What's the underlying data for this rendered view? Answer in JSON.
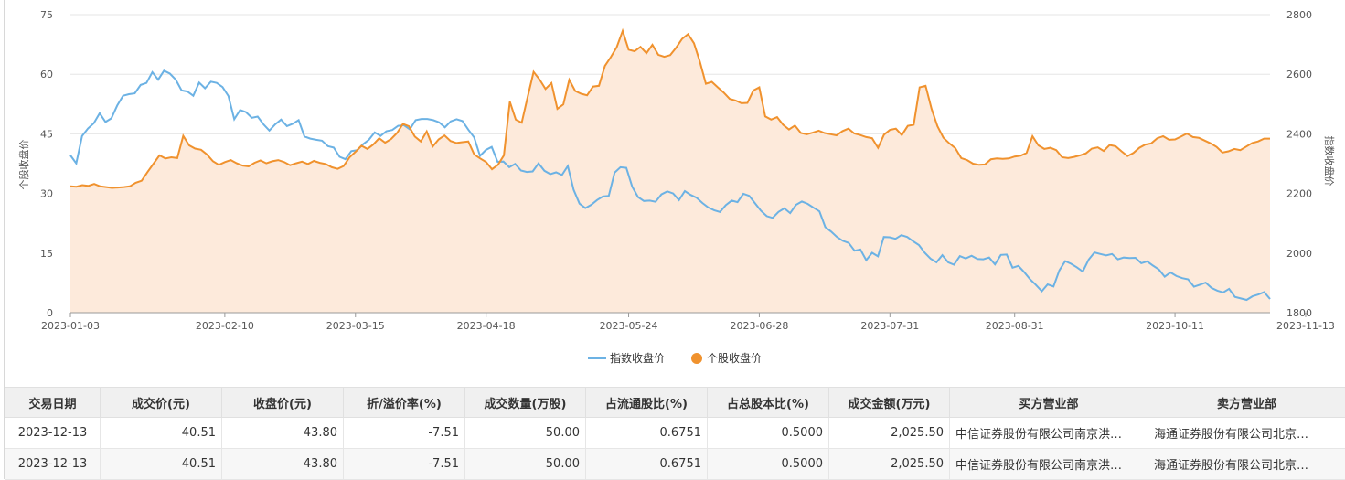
{
  "chart_data": {
    "type": "line",
    "x_ticks": [
      "2023-01-03",
      "2023-02-10",
      "2023-03-15",
      "2023-04-18",
      "2023-05-24",
      "2023-06-28",
      "2023-07-31",
      "2023-08-31",
      "2023-10-11",
      "2023-11-13"
    ],
    "y_left": {
      "label": "个股收盘价",
      "ticks": [
        "0",
        "15",
        "30",
        "45",
        "60",
        "75"
      ],
      "range": [
        0,
        75
      ]
    },
    "y_right": {
      "label": "指数收盘价",
      "ticks": [
        "1800",
        "2000",
        "2200",
        "2400",
        "2600",
        "2800"
      ],
      "range": [
        1800,
        2800
      ]
    },
    "legend": [
      {
        "name": "指数收盘价",
        "color": "#6cb2e4"
      },
      {
        "name": "个股收盘价",
        "color": "#f0922e"
      }
    ],
    "legend_position": "bottom",
    "grid": true,
    "colors": {
      "index_line": "#6cb2e4",
      "stock_line": "#f0922e",
      "stock_area": "#fdeadb"
    },
    "series": [
      {
        "name": "指数收盘价",
        "axis": "right",
        "values": [
          2328,
          2301,
          2393,
          2418,
          2436,
          2469,
          2440,
          2452,
          2495,
          2528,
          2533,
          2536,
          2564,
          2571,
          2607,
          2582,
          2612,
          2602,
          2582,
          2546,
          2542,
          2528,
          2572,
          2553,
          2575,
          2571,
          2557,
          2527,
          2449,
          2480,
          2473,
          2454,
          2458,
          2432,
          2411,
          2432,
          2448,
          2426,
          2434,
          2446,
          2391,
          2384,
          2380,
          2377,
          2359,
          2354,
          2323,
          2315,
          2342,
          2345,
          2365,
          2380,
          2405,
          2393,
          2409,
          2413,
          2427,
          2429,
          2415,
          2446,
          2450,
          2450,
          2446,
          2439,
          2422,
          2442,
          2449,
          2443,
          2414,
          2388,
          2326,
          2346,
          2356,
          2306,
          2307,
          2288,
          2299,
          2277,
          2272,
          2274,
          2301,
          2276,
          2265,
          2271,
          2262,
          2292,
          2212,
          2166,
          2151,
          2162,
          2178,
          2190,
          2192,
          2270,
          2288,
          2286,
          2223,
          2188,
          2175,
          2176,
          2172,
          2197,
          2207,
          2200,
          2178,
          2208,
          2195,
          2186,
          2168,
          2153,
          2144,
          2138,
          2161,
          2176,
          2171,
          2199,
          2192,
          2167,
          2142,
          2124,
          2118,
          2138,
          2150,
          2134,
          2162,
          2173,
          2165,
          2152,
          2140,
          2087,
          2072,
          2054,
          2041,
          2034,
          2008,
          2012,
          1976,
          2001,
          1989,
          2054,
          2053,
          2048,
          2060,
          2054,
          2040,
          2027,
          2001,
          1981,
          1969,
          1993,
          1969,
          1961,
          1990,
          1982,
          1991,
          1980,
          1979,
          1985,
          1962,
          1994,
          1995,
          1951,
          1957,
          1936,
          1912,
          1893,
          1872,
          1895,
          1888,
          1942,
          1973,
          1964,
          1952,
          1938,
          1978,
          2002,
          1997,
          1992,
          1997,
          1979,
          1985,
          1983,
          1984,
          1966,
          1972,
          1958,
          1945,
          1921,
          1935,
          1923,
          1916,
          1912,
          1887,
          1894,
          1901,
          1883,
          1874,
          1868,
          1880,
          1853,
          1848,
          1843,
          1855,
          1861,
          1869,
          1846
        ]
      },
      {
        "name": "个股收盘价",
        "axis": "left",
        "values": [
          31.8,
          31.7,
          32.1,
          31.9,
          32.4,
          31.8,
          31.6,
          31.4,
          31.5,
          31.6,
          31.8,
          32.7,
          33.2,
          35.4,
          37.5,
          39.6,
          38.8,
          39.1,
          38.9,
          44.5,
          42.1,
          41.3,
          41.0,
          39.8,
          38.1,
          37.2,
          37.9,
          38.4,
          37.6,
          37.0,
          36.8,
          37.7,
          38.3,
          37.6,
          38.1,
          38.4,
          37.9,
          37.1,
          37.6,
          38.0,
          37.4,
          38.2,
          37.7,
          37.4,
          36.6,
          36.2,
          36.9,
          39.1,
          40.5,
          42.0,
          41.2,
          42.3,
          43.9,
          42.8,
          43.7,
          45.2,
          47.5,
          46.9,
          44.3,
          43.1,
          45.6,
          41.8,
          43.6,
          44.6,
          43.2,
          42.7,
          42.9,
          43.1,
          39.8,
          38.8,
          37.9,
          36.1,
          37.2,
          39.6,
          53.1,
          48.6,
          47.8,
          54.3,
          60.6,
          58.7,
          56.3,
          57.8,
          51.3,
          52.4,
          58.6,
          55.8,
          55.1,
          54.7,
          56.9,
          57.1,
          62.1,
          64.3,
          66.8,
          70.9,
          66.2,
          65.8,
          66.9,
          65.3,
          67.4,
          64.9,
          64.4,
          64.8,
          66.7,
          68.9,
          70.1,
          67.8,
          63.1,
          57.6,
          58.1,
          56.7,
          55.4,
          53.8,
          53.4,
          52.7,
          52.8,
          55.9,
          56.7,
          49.4,
          48.6,
          49.2,
          47.3,
          46.1,
          47.1,
          45.2,
          44.9,
          45.3,
          45.8,
          45.2,
          44.9,
          44.6,
          45.7,
          46.3,
          45.1,
          44.7,
          44.2,
          43.9,
          41.5,
          44.8,
          46.0,
          46.3,
          44.7,
          47.0,
          47.3,
          56.7,
          57.1,
          51.3,
          46.9,
          44.0,
          42.6,
          41.4,
          38.9,
          38.4,
          37.5,
          37.2,
          37.3,
          38.6,
          38.8,
          38.7,
          38.8,
          39.3,
          39.5,
          40.2,
          44.4,
          42.1,
          41.2,
          41.5,
          40.9,
          39.1,
          38.9,
          39.2,
          39.6,
          40.1,
          41.3,
          41.6,
          40.7,
          42.2,
          41.9,
          40.6,
          39.4,
          40.2,
          41.5,
          42.3,
          42.6,
          43.9,
          44.4,
          43.5,
          43.6,
          44.3,
          45.1,
          44.2,
          44.0,
          43.3,
          42.6,
          41.7,
          40.3,
          40.6,
          41.2,
          40.9,
          41.8,
          42.7,
          43.1,
          43.8,
          43.8
        ]
      }
    ]
  },
  "table": {
    "headers": [
      "交易日期",
      "成交价(元)",
      "收盘价(元)",
      "折/溢价率(%)",
      "成交数量(万股)",
      "占流通股比(%)",
      "占总股本比(%)",
      "成交金额(万元)",
      "买方营业部",
      "卖方营业部"
    ],
    "rows": [
      [
        "2023-12-13",
        "40.51",
        "43.80",
        "-7.51",
        "50.00",
        "0.6751",
        "0.5000",
        "2,025.50",
        "中信证券股份有限公司南京洪…",
        "海通证券股份有限公司北京…"
      ],
      [
        "2023-12-13",
        "40.51",
        "43.80",
        "-7.51",
        "50.00",
        "0.6751",
        "0.5000",
        "2,025.50",
        "中信证券股份有限公司南京洪…",
        "海通证券股份有限公司北京…"
      ]
    ]
  }
}
